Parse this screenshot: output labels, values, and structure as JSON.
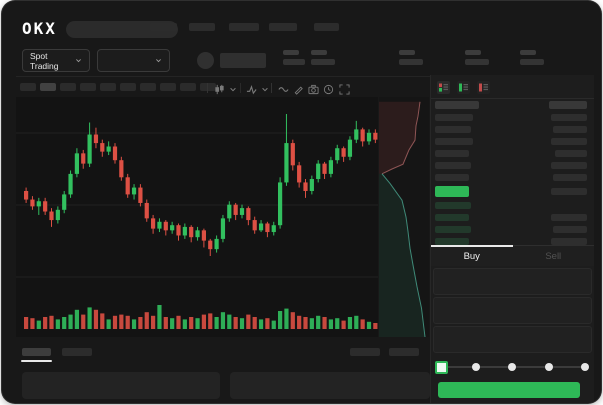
{
  "colors": {
    "accent_green": "#2eb857",
    "accent_red": "#dd5044",
    "window_bg": "#181818",
    "panel_bg": "#1d1d1d",
    "chart_bg": "#131313"
  },
  "header": {
    "logo_text": "OKX",
    "search_placeholder": "",
    "nav_placeholder_count": 5
  },
  "market_bar": {
    "market_selector_label": "Spot Trading"
  },
  "toolbar": {
    "timeframe_count": 10,
    "timeframe_active_index": 1,
    "icons": [
      "candlestick-chart-icon",
      "chevron-down-icon",
      "indicators-icon",
      "chevron-down-icon",
      "wave-tool-icon",
      "pencil-tool-icon",
      "camera-icon",
      "clock-icon",
      "fullscreen-icon"
    ]
  },
  "orderbook": {
    "view_toggle_icons": [
      "orderbook-combined-icon",
      "orderbook-bids-icon",
      "orderbook-asks-icon"
    ],
    "rows": [
      {
        "type": "header",
        "l": 44,
        "r": 38
      },
      {
        "type": "ask",
        "l": 38,
        "r": 36
      },
      {
        "type": "ask",
        "l": 36,
        "r": 34
      },
      {
        "type": "ask",
        "l": 38,
        "r": 36
      },
      {
        "type": "ask",
        "l": 34,
        "r": 32
      },
      {
        "type": "ask",
        "l": 36,
        "r": 36
      },
      {
        "type": "ask",
        "l": 34,
        "r": 34
      },
      {
        "type": "price",
        "l": 34,
        "r": 36
      },
      {
        "type": "bid",
        "l": 36,
        "r": 0
      },
      {
        "type": "bid",
        "l": 34,
        "r": 36
      },
      {
        "type": "bid",
        "l": 36,
        "r": 34
      },
      {
        "type": "bid",
        "l": 34,
        "r": 36
      }
    ]
  },
  "trade_panel": {
    "buy_tab_label": "Buy",
    "sell_tab_label": "Sell",
    "active_tab": "Buy",
    "form_row_count": 3,
    "slider_stops": 5,
    "slider_active_stop": 0
  },
  "chart_data": [
    {
      "type": "candlestick",
      "title": "",
      "xlabel": "",
      "ylabel": "",
      "grid": true,
      "price_range": [
        112,
        195
      ],
      "up_color": "#32c05f",
      "down_color": "#dd5044",
      "candles": [
        [
          150,
          145,
          143,
          152
        ],
        [
          145,
          141,
          139,
          147
        ],
        [
          141,
          144,
          136,
          146
        ],
        [
          144,
          138,
          136,
          146
        ],
        [
          138,
          133,
          129,
          140
        ],
        [
          133,
          139,
          131,
          141
        ],
        [
          139,
          148,
          137,
          150
        ],
        [
          148,
          160,
          146,
          162
        ],
        [
          160,
          172,
          158,
          175
        ],
        [
          172,
          166,
          163,
          174
        ],
        [
          166,
          183,
          164,
          190
        ],
        [
          183,
          178,
          175,
          187
        ],
        [
          178,
          173,
          170,
          180
        ],
        [
          173,
          176,
          171,
          179
        ],
        [
          176,
          168,
          166,
          178
        ],
        [
          168,
          158,
          156,
          170
        ],
        [
          158,
          148,
          146,
          160
        ],
        [
          148,
          152,
          145,
          154
        ],
        [
          152,
          143,
          141,
          154
        ],
        [
          143,
          134,
          132,
          145
        ],
        [
          134,
          128,
          125,
          136
        ],
        [
          128,
          132,
          126,
          134
        ],
        [
          132,
          127,
          124,
          133
        ],
        [
          127,
          130,
          125,
          132
        ],
        [
          130,
          124,
          121,
          131
        ],
        [
          124,
          129,
          122,
          131
        ],
        [
          129,
          123,
          120,
          130
        ],
        [
          123,
          127,
          121,
          129
        ],
        [
          127,
          121,
          117,
          128
        ],
        [
          121,
          116,
          112,
          122
        ],
        [
          116,
          122,
          114,
          124
        ],
        [
          122,
          134,
          120,
          136
        ],
        [
          134,
          142,
          132,
          144
        ],
        [
          142,
          136,
          133,
          143
        ],
        [
          136,
          140,
          134,
          142
        ],
        [
          140,
          133,
          130,
          141
        ],
        [
          133,
          127,
          125,
          135
        ],
        [
          127,
          131,
          126,
          133
        ],
        [
          131,
          126,
          123,
          132
        ],
        [
          126,
          130,
          124,
          132
        ],
        [
          130,
          155,
          128,
          158
        ],
        [
          155,
          178,
          153,
          195
        ],
        [
          178,
          165,
          162,
          180
        ],
        [
          165,
          155,
          152,
          167
        ],
        [
          155,
          150,
          146,
          157
        ],
        [
          150,
          157,
          148,
          159
        ],
        [
          157,
          166,
          155,
          168
        ],
        [
          166,
          160,
          157,
          167
        ],
        [
          160,
          168,
          158,
          170
        ],
        [
          168,
          175,
          166,
          177
        ],
        [
          175,
          170,
          167,
          176
        ],
        [
          170,
          180,
          168,
          182
        ],
        [
          180,
          186,
          178,
          191
        ],
        [
          186,
          179,
          176,
          187
        ],
        [
          179,
          184,
          177,
          186
        ],
        [
          184,
          180,
          178,
          186
        ]
      ],
      "volumes": [
        0.5,
        0.45,
        0.35,
        0.5,
        0.55,
        0.4,
        0.5,
        0.6,
        0.8,
        0.6,
        0.9,
        0.8,
        0.65,
        0.4,
        0.55,
        0.6,
        0.55,
        0.4,
        0.5,
        0.7,
        0.55,
        1.0,
        0.5,
        0.45,
        0.55,
        0.4,
        0.5,
        0.45,
        0.6,
        0.65,
        0.5,
        0.7,
        0.6,
        0.5,
        0.45,
        0.6,
        0.5,
        0.4,
        0.45,
        0.35,
        0.75,
        0.85,
        0.7,
        0.55,
        0.5,
        0.45,
        0.55,
        0.5,
        0.4,
        0.45,
        0.35,
        0.5,
        0.55,
        0.4,
        0.3,
        0.25
      ]
    },
    {
      "type": "area",
      "name": "market-depth",
      "ask_fill": "rgba(150,60,60,0.18)",
      "ask_stroke": "#8f5555",
      "bid_fill": "rgba(40,110,85,0.18)",
      "bid_stroke": "#3f8a78",
      "asks": [
        [
          0.82,
          0.02
        ],
        [
          0.78,
          0.08
        ],
        [
          0.74,
          0.12
        ],
        [
          0.72,
          0.18
        ],
        [
          0.6,
          0.22
        ],
        [
          0.54,
          0.25
        ],
        [
          0.48,
          0.28
        ],
        [
          0.26,
          0.3
        ],
        [
          0.06,
          0.32
        ]
      ],
      "bids": [
        [
          0.06,
          0.32
        ],
        [
          0.22,
          0.36
        ],
        [
          0.46,
          0.43
        ],
        [
          0.54,
          0.5
        ],
        [
          0.58,
          0.56
        ],
        [
          0.62,
          0.63
        ],
        [
          0.68,
          0.7
        ],
        [
          0.76,
          0.79
        ],
        [
          0.85,
          0.88
        ],
        [
          0.92,
          1.0
        ]
      ]
    }
  ]
}
